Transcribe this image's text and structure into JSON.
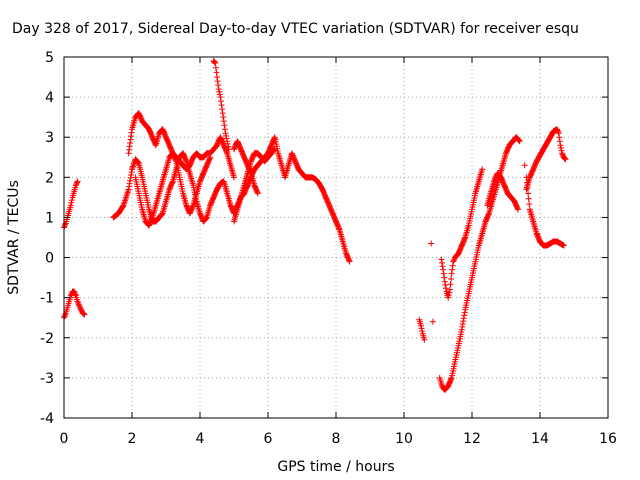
{
  "chart_data": {
    "type": "scatter",
    "title": "Day 328 of 2017, Sidereal Day-to-day VTEC variation (SDTVAR) for receiver esqu",
    "xlabel": "GPS time / hours",
    "ylabel": "SDTVAR / TECUs",
    "xlim": [
      0,
      16
    ],
    "ylim": [
      -4,
      5
    ],
    "xticks": [
      "0",
      "2",
      "4",
      "6",
      "8",
      "10",
      "12",
      "14",
      "16"
    ],
    "yticks": [
      "-4",
      "-3",
      "-2",
      "-1",
      "0",
      "1",
      "2",
      "3",
      "4",
      "5"
    ],
    "grid": true,
    "marker": "plus",
    "marker_color": "#ff0000",
    "segments": [
      [
        [
          0.0,
          -1.5
        ],
        [
          0.05,
          -1.4
        ],
        [
          0.1,
          -1.25
        ],
        [
          0.15,
          -1.1
        ],
        [
          0.2,
          -0.95
        ],
        [
          0.25,
          -0.85
        ],
        [
          0.3,
          -0.85
        ],
        [
          0.35,
          -0.95
        ],
        [
          0.4,
          -1.1
        ],
        [
          0.45,
          -1.2
        ],
        [
          0.5,
          -1.3
        ],
        [
          0.55,
          -1.38
        ],
        [
          0.6,
          -1.42
        ]
      ],
      [
        [
          0.0,
          0.75
        ],
        [
          0.05,
          0.85
        ],
        [
          0.1,
          1.0
        ],
        [
          0.15,
          1.15
        ],
        [
          0.2,
          1.3
        ],
        [
          0.25,
          1.5
        ],
        [
          0.3,
          1.65
        ],
        [
          0.35,
          1.8
        ],
        [
          0.4,
          1.9
        ]
      ],
      [
        [
          1.45,
          1.0
        ],
        [
          1.6,
          1.1
        ],
        [
          1.75,
          1.3
        ],
        [
          1.9,
          1.7
        ],
        [
          2.0,
          2.2
        ],
        [
          2.1,
          2.45
        ],
        [
          2.2,
          2.35
        ],
        [
          2.3,
          2.0
        ],
        [
          2.4,
          1.6
        ],
        [
          2.5,
          1.2
        ],
        [
          2.6,
          0.9
        ],
        [
          2.7,
          0.9
        ],
        [
          2.8,
          1.0
        ],
        [
          2.9,
          1.1
        ],
        [
          3.0,
          1.4
        ],
        [
          3.1,
          1.7
        ],
        [
          3.2,
          1.9
        ],
        [
          3.3,
          2.2
        ],
        [
          3.4,
          2.5
        ],
        [
          3.5,
          2.6
        ],
        [
          3.6,
          2.4
        ],
        [
          3.7,
          2.1
        ],
        [
          3.8,
          1.8
        ],
        [
          3.9,
          1.4
        ],
        [
          4.0,
          1.1
        ],
        [
          4.1,
          0.9
        ],
        [
          4.2,
          1.0
        ],
        [
          4.3,
          1.3
        ],
        [
          4.4,
          1.5
        ],
        [
          4.5,
          1.7
        ],
        [
          4.6,
          1.85
        ],
        [
          4.7,
          1.9
        ],
        [
          4.8,
          1.6
        ],
        [
          4.9,
          1.3
        ],
        [
          5.0,
          1.1
        ],
        [
          5.1,
          1.3
        ],
        [
          5.2,
          1.5
        ],
        [
          5.3,
          1.6
        ],
        [
          5.4,
          1.8
        ],
        [
          5.5,
          2.0
        ],
        [
          5.6,
          2.2
        ],
        [
          5.7,
          2.3
        ],
        [
          5.8,
          2.4
        ],
        [
          5.9,
          2.5
        ],
        [
          6.0,
          2.6
        ],
        [
          6.1,
          2.8
        ],
        [
          6.2,
          3.0
        ],
        [
          6.3,
          2.6
        ],
        [
          6.4,
          2.3
        ],
        [
          6.5,
          2.0
        ],
        [
          6.6,
          2.3
        ],
        [
          6.7,
          2.6
        ],
        [
          6.8,
          2.4
        ],
        [
          6.9,
          2.2
        ],
        [
          7.0,
          2.1
        ],
        [
          7.1,
          2.0
        ],
        [
          7.2,
          2.0
        ],
        [
          7.3,
          2.0
        ],
        [
          7.4,
          1.95
        ],
        [
          7.5,
          1.85
        ],
        [
          7.6,
          1.7
        ],
        [
          7.7,
          1.5
        ],
        [
          7.8,
          1.3
        ],
        [
          7.9,
          1.1
        ],
        [
          8.0,
          0.9
        ],
        [
          8.1,
          0.7
        ],
        [
          8.2,
          0.4
        ],
        [
          8.3,
          0.1
        ],
        [
          8.4,
          -0.1
        ]
      ],
      [
        [
          1.9,
          2.6
        ],
        [
          2.0,
          3.2
        ],
        [
          2.1,
          3.5
        ],
        [
          2.2,
          3.6
        ],
        [
          2.3,
          3.4
        ],
        [
          2.4,
          3.3
        ],
        [
          2.5,
          3.2
        ],
        [
          2.6,
          3.0
        ],
        [
          2.7,
          2.8
        ],
        [
          2.8,
          3.1
        ],
        [
          2.9,
          3.2
        ],
        [
          3.0,
          3.0
        ],
        [
          3.1,
          2.8
        ],
        [
          3.2,
          2.6
        ],
        [
          3.3,
          2.5
        ],
        [
          3.4,
          2.4
        ],
        [
          3.5,
          2.3
        ],
        [
          3.6,
          2.2
        ],
        [
          3.7,
          2.3
        ],
        [
          3.8,
          2.5
        ],
        [
          3.9,
          2.6
        ],
        [
          4.0,
          2.5
        ],
        [
          4.1,
          2.5
        ],
        [
          4.2,
          2.6
        ],
        [
          4.3,
          2.6
        ],
        [
          4.4,
          2.7
        ],
        [
          4.5,
          2.8
        ],
        [
          4.6,
          3.0
        ],
        [
          4.7,
          2.8
        ],
        [
          4.8,
          2.6
        ],
        [
          4.9,
          2.3
        ],
        [
          5.0,
          2.0
        ]
      ],
      [
        [
          2.1,
          2.0
        ],
        [
          2.2,
          1.6
        ],
        [
          2.3,
          1.2
        ],
        [
          2.4,
          0.9
        ],
        [
          2.5,
          0.8
        ],
        [
          2.6,
          1.0
        ],
        [
          2.7,
          1.3
        ],
        [
          2.8,
          1.6
        ],
        [
          2.9,
          1.9
        ],
        [
          3.0,
          2.2
        ],
        [
          3.1,
          2.5
        ],
        [
          3.2,
          2.6
        ],
        [
          3.3,
          2.4
        ],
        [
          3.4,
          2.0
        ],
        [
          3.5,
          1.6
        ],
        [
          3.6,
          1.3
        ],
        [
          3.7,
          1.1
        ],
        [
          3.8,
          1.3
        ],
        [
          3.9,
          1.6
        ],
        [
          4.0,
          1.9
        ],
        [
          4.1,
          2.1
        ],
        [
          4.2,
          2.3
        ],
        [
          4.3,
          2.5
        ]
      ],
      [
        [
          4.4,
          4.9
        ],
        [
          4.45,
          4.85
        ],
        [
          4.5,
          4.5
        ],
        [
          4.55,
          4.2
        ],
        [
          4.6,
          4.0
        ],
        [
          4.65,
          3.7
        ],
        [
          4.7,
          3.4
        ],
        [
          4.75,
          3.1
        ],
        [
          4.8,
          2.9
        ],
        [
          4.85,
          2.7
        ]
      ],
      [
        [
          5.0,
          0.9
        ],
        [
          5.1,
          1.2
        ],
        [
          5.2,
          1.5
        ],
        [
          5.3,
          1.8
        ],
        [
          5.4,
          2.1
        ],
        [
          5.5,
          2.4
        ],
        [
          5.6,
          2.6
        ],
        [
          5.7,
          2.6
        ],
        [
          5.8,
          2.5
        ],
        [
          5.9,
          2.4
        ],
        [
          6.0,
          2.5
        ],
        [
          6.1,
          2.6
        ],
        [
          6.2,
          2.7
        ]
      ],
      [
        [
          5.0,
          2.7
        ],
        [
          5.1,
          2.9
        ],
        [
          5.2,
          2.7
        ],
        [
          5.3,
          2.5
        ],
        [
          5.4,
          2.3
        ],
        [
          5.5,
          2.1
        ],
        [
          5.6,
          1.8
        ],
        [
          5.7,
          1.6
        ]
      ],
      [
        [
          10.45,
          -1.55
        ],
        [
          10.5,
          -1.7
        ],
        [
          10.55,
          -1.9
        ],
        [
          10.6,
          -2.05
        ]
      ],
      [
        [
          10.8,
          0.35
        ]
      ],
      [
        [
          10.85,
          -1.6
        ]
      ],
      [
        [
          11.1,
          -0.05
        ],
        [
          11.15,
          -0.3
        ],
        [
          11.2,
          -0.6
        ],
        [
          11.25,
          -0.85
        ],
        [
          11.3,
          -1.0
        ],
        [
          11.35,
          -0.8
        ],
        [
          11.4,
          -0.4
        ],
        [
          11.45,
          -0.1
        ],
        [
          11.5,
          0.0
        ],
        [
          11.6,
          0.1
        ],
        [
          11.7,
          0.3
        ],
        [
          11.8,
          0.5
        ],
        [
          11.9,
          0.8
        ],
        [
          12.0,
          1.2
        ],
        [
          12.1,
          1.6
        ],
        [
          12.2,
          1.9
        ],
        [
          12.3,
          2.2
        ]
      ],
      [
        [
          11.05,
          -3.0
        ],
        [
          11.1,
          -3.15
        ],
        [
          11.15,
          -3.25
        ],
        [
          11.2,
          -3.3
        ],
        [
          11.3,
          -3.2
        ],
        [
          11.4,
          -3.0
        ],
        [
          11.5,
          -2.6
        ],
        [
          11.6,
          -2.2
        ],
        [
          11.7,
          -1.8
        ],
        [
          11.8,
          -1.3
        ],
        [
          11.9,
          -0.9
        ],
        [
          12.0,
          -0.5
        ],
        [
          12.1,
          -0.1
        ],
        [
          12.2,
          0.3
        ],
        [
          12.3,
          0.6
        ],
        [
          12.4,
          0.9
        ],
        [
          12.5,
          1.1
        ],
        [
          12.6,
          1.4
        ],
        [
          12.7,
          1.7
        ],
        [
          12.8,
          2.0
        ],
        [
          12.9,
          2.3
        ],
        [
          13.0,
          2.6
        ],
        [
          13.1,
          2.8
        ],
        [
          13.2,
          2.9
        ],
        [
          13.3,
          3.0
        ],
        [
          13.4,
          2.9
        ]
      ],
      [
        [
          12.45,
          1.3
        ],
        [
          12.55,
          1.6
        ],
        [
          12.65,
          1.9
        ],
        [
          12.75,
          2.1
        ],
        [
          12.85,
          2.0
        ],
        [
          12.95,
          1.8
        ],
        [
          13.05,
          1.6
        ],
        [
          13.15,
          1.5
        ],
        [
          13.25,
          1.4
        ],
        [
          13.35,
          1.2
        ]
      ],
      [
        [
          13.6,
          1.7
        ],
        [
          13.7,
          2.0
        ],
        [
          13.8,
          2.2
        ],
        [
          13.9,
          2.4
        ],
        [
          14.0,
          2.55
        ],
        [
          14.1,
          2.7
        ],
        [
          14.2,
          2.85
        ],
        [
          14.3,
          3.0
        ],
        [
          14.4,
          3.15
        ],
        [
          14.5,
          3.2
        ],
        [
          14.55,
          3.1
        ],
        [
          14.6,
          2.8
        ],
        [
          14.65,
          2.6
        ],
        [
          14.7,
          2.5
        ],
        [
          14.75,
          2.45
        ]
      ],
      [
        [
          13.6,
          2.0
        ],
        [
          13.65,
          1.6
        ],
        [
          13.7,
          1.2
        ],
        [
          13.8,
          0.9
        ],
        [
          13.9,
          0.6
        ],
        [
          14.0,
          0.4
        ],
        [
          14.1,
          0.3
        ],
        [
          14.2,
          0.3
        ],
        [
          14.3,
          0.35
        ],
        [
          14.4,
          0.4
        ],
        [
          14.5,
          0.4
        ],
        [
          14.6,
          0.35
        ],
        [
          14.7,
          0.3
        ]
      ],
      [
        [
          13.55,
          2.3
        ]
      ]
    ]
  }
}
